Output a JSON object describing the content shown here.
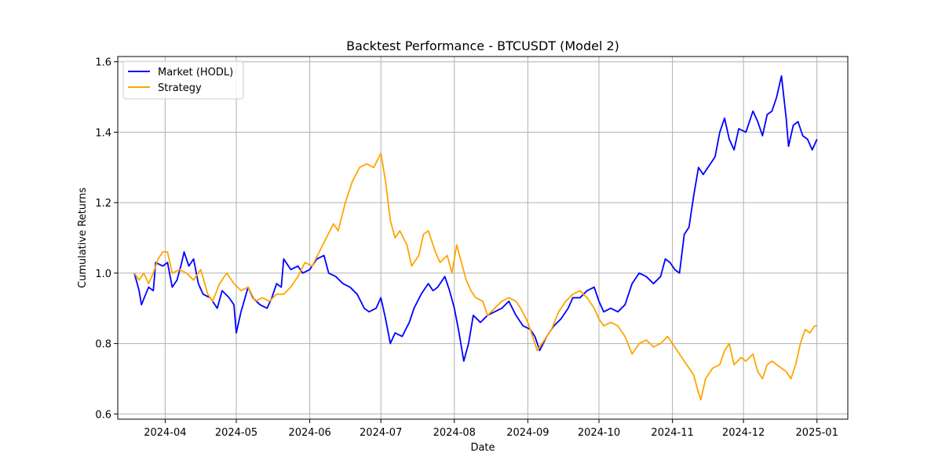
{
  "chart_data": {
    "type": "line",
    "title": "Backtest Performance - BTCUSDT (Model 2)",
    "xlabel": "Date",
    "ylabel": "Cumulative Returns",
    "xlim": [
      "2024-03-12",
      "2025-01-14"
    ],
    "ylim": [
      0.585,
      1.615
    ],
    "x_ticks": [
      "2024-04-01",
      "2024-05-01",
      "2024-06-01",
      "2024-07-01",
      "2024-08-01",
      "2024-09-01",
      "2024-10-01",
      "2024-11-01",
      "2024-12-01",
      "2025-01-01"
    ],
    "x_tick_labels": [
      "2024-04",
      "2024-05",
      "2024-06",
      "2024-07",
      "2024-08",
      "2024-09",
      "2024-10",
      "2024-11",
      "2024-12",
      "2025-01"
    ],
    "y_ticks": [
      0.6,
      0.8,
      1.0,
      1.2,
      1.4,
      1.6
    ],
    "y_tick_labels": [
      "0.6",
      "0.8",
      "1.0",
      "1.2",
      "1.4",
      "1.6"
    ],
    "grid": true,
    "legend_position": "top-left",
    "series": [
      {
        "name": "Market (HODL)",
        "color": "#0000ff",
        "points": [
          [
            "2024-03-19",
            1.0
          ],
          [
            "2024-03-21",
            0.95
          ],
          [
            "2024-03-22",
            0.91
          ],
          [
            "2024-03-25",
            0.96
          ],
          [
            "2024-03-27",
            0.95
          ],
          [
            "2024-03-28",
            1.03
          ],
          [
            "2024-03-31",
            1.02
          ],
          [
            "2024-04-02",
            1.03
          ],
          [
            "2024-04-04",
            0.96
          ],
          [
            "2024-04-06",
            0.98
          ],
          [
            "2024-04-08",
            1.03
          ],
          [
            "2024-04-09",
            1.06
          ],
          [
            "2024-04-11",
            1.02
          ],
          [
            "2024-04-13",
            1.04
          ],
          [
            "2024-04-15",
            0.97
          ],
          [
            "2024-04-17",
            0.94
          ],
          [
            "2024-04-20",
            0.93
          ],
          [
            "2024-04-23",
            0.9
          ],
          [
            "2024-04-25",
            0.95
          ],
          [
            "2024-04-28",
            0.93
          ],
          [
            "2024-04-30",
            0.91
          ],
          [
            "2024-05-01",
            0.83
          ],
          [
            "2024-05-03",
            0.89
          ],
          [
            "2024-05-06",
            0.96
          ],
          [
            "2024-05-08",
            0.93
          ],
          [
            "2024-05-11",
            0.91
          ],
          [
            "2024-05-14",
            0.9
          ],
          [
            "2024-05-16",
            0.93
          ],
          [
            "2024-05-18",
            0.97
          ],
          [
            "2024-05-20",
            0.96
          ],
          [
            "2024-05-21",
            1.04
          ],
          [
            "2024-05-24",
            1.01
          ],
          [
            "2024-05-27",
            1.02
          ],
          [
            "2024-05-29",
            1.0
          ],
          [
            "2024-06-01",
            1.01
          ],
          [
            "2024-06-04",
            1.04
          ],
          [
            "2024-06-07",
            1.05
          ],
          [
            "2024-06-09",
            1.0
          ],
          [
            "2024-06-12",
            0.99
          ],
          [
            "2024-06-15",
            0.97
          ],
          [
            "2024-06-18",
            0.96
          ],
          [
            "2024-06-21",
            0.94
          ],
          [
            "2024-06-24",
            0.9
          ],
          [
            "2024-06-26",
            0.89
          ],
          [
            "2024-06-29",
            0.9
          ],
          [
            "2024-07-01",
            0.93
          ],
          [
            "2024-07-03",
            0.87
          ],
          [
            "2024-07-05",
            0.8
          ],
          [
            "2024-07-07",
            0.83
          ],
          [
            "2024-07-10",
            0.82
          ],
          [
            "2024-07-13",
            0.86
          ],
          [
            "2024-07-15",
            0.9
          ],
          [
            "2024-07-18",
            0.94
          ],
          [
            "2024-07-21",
            0.97
          ],
          [
            "2024-07-23",
            0.95
          ],
          [
            "2024-07-25",
            0.96
          ],
          [
            "2024-07-28",
            0.99
          ],
          [
            "2024-07-30",
            0.95
          ],
          [
            "2024-08-01",
            0.9
          ],
          [
            "2024-08-03",
            0.83
          ],
          [
            "2024-08-05",
            0.75
          ],
          [
            "2024-08-07",
            0.8
          ],
          [
            "2024-08-09",
            0.88
          ],
          [
            "2024-08-12",
            0.86
          ],
          [
            "2024-08-15",
            0.88
          ],
          [
            "2024-08-18",
            0.89
          ],
          [
            "2024-08-21",
            0.9
          ],
          [
            "2024-08-24",
            0.92
          ],
          [
            "2024-08-27",
            0.88
          ],
          [
            "2024-08-30",
            0.85
          ],
          [
            "2024-09-02",
            0.84
          ],
          [
            "2024-09-04",
            0.82
          ],
          [
            "2024-09-06",
            0.78
          ],
          [
            "2024-09-09",
            0.82
          ],
          [
            "2024-09-12",
            0.85
          ],
          [
            "2024-09-15",
            0.87
          ],
          [
            "2024-09-18",
            0.9
          ],
          [
            "2024-09-20",
            0.93
          ],
          [
            "2024-09-23",
            0.93
          ],
          [
            "2024-09-26",
            0.95
          ],
          [
            "2024-09-29",
            0.96
          ],
          [
            "2024-10-01",
            0.92
          ],
          [
            "2024-10-03",
            0.89
          ],
          [
            "2024-10-06",
            0.9
          ],
          [
            "2024-10-09",
            0.89
          ],
          [
            "2024-10-12",
            0.91
          ],
          [
            "2024-10-15",
            0.97
          ],
          [
            "2024-10-18",
            1.0
          ],
          [
            "2024-10-21",
            0.99
          ],
          [
            "2024-10-24",
            0.97
          ],
          [
            "2024-10-27",
            0.99
          ],
          [
            "2024-10-29",
            1.04
          ],
          [
            "2024-10-31",
            1.03
          ],
          [
            "2024-11-02",
            1.01
          ],
          [
            "2024-11-04",
            1.0
          ],
          [
            "2024-11-06",
            1.11
          ],
          [
            "2024-11-08",
            1.13
          ],
          [
            "2024-11-10",
            1.22
          ],
          [
            "2024-11-12",
            1.3
          ],
          [
            "2024-11-14",
            1.28
          ],
          [
            "2024-11-16",
            1.3
          ],
          [
            "2024-11-19",
            1.33
          ],
          [
            "2024-11-21",
            1.4
          ],
          [
            "2024-11-23",
            1.44
          ],
          [
            "2024-11-25",
            1.38
          ],
          [
            "2024-11-27",
            1.35
          ],
          [
            "2024-11-29",
            1.41
          ],
          [
            "2024-12-02",
            1.4
          ],
          [
            "2024-12-05",
            1.46
          ],
          [
            "2024-12-07",
            1.43
          ],
          [
            "2024-12-09",
            1.39
          ],
          [
            "2024-12-11",
            1.45
          ],
          [
            "2024-12-13",
            1.46
          ],
          [
            "2024-12-15",
            1.5
          ],
          [
            "2024-12-17",
            1.56
          ],
          [
            "2024-12-19",
            1.44
          ],
          [
            "2024-12-20",
            1.36
          ],
          [
            "2024-12-22",
            1.42
          ],
          [
            "2024-12-24",
            1.43
          ],
          [
            "2024-12-26",
            1.39
          ],
          [
            "2024-12-28",
            1.38
          ],
          [
            "2024-12-30",
            1.35
          ],
          [
            "2025-01-01",
            1.38
          ]
        ]
      },
      {
        "name": "Strategy",
        "color": "#ffa500",
        "points": [
          [
            "2024-03-19",
            1.0
          ],
          [
            "2024-03-21",
            0.98
          ],
          [
            "2024-03-23",
            1.0
          ],
          [
            "2024-03-25",
            0.97
          ],
          [
            "2024-03-27",
            1.0
          ],
          [
            "2024-03-29",
            1.04
          ],
          [
            "2024-03-31",
            1.06
          ],
          [
            "2024-04-02",
            1.06
          ],
          [
            "2024-04-04",
            1.0
          ],
          [
            "2024-04-07",
            1.01
          ],
          [
            "2024-04-10",
            1.0
          ],
          [
            "2024-04-13",
            0.98
          ],
          [
            "2024-04-16",
            1.01
          ],
          [
            "2024-04-19",
            0.94
          ],
          [
            "2024-04-21",
            0.92
          ],
          [
            "2024-04-24",
            0.97
          ],
          [
            "2024-04-27",
            1.0
          ],
          [
            "2024-04-30",
            0.97
          ],
          [
            "2024-05-03",
            0.95
          ],
          [
            "2024-05-06",
            0.96
          ],
          [
            "2024-05-09",
            0.92
          ],
          [
            "2024-05-12",
            0.93
          ],
          [
            "2024-05-15",
            0.92
          ],
          [
            "2024-05-18",
            0.94
          ],
          [
            "2024-05-21",
            0.94
          ],
          [
            "2024-05-24",
            0.96
          ],
          [
            "2024-05-27",
            0.99
          ],
          [
            "2024-05-30",
            1.03
          ],
          [
            "2024-06-02",
            1.02
          ],
          [
            "2024-06-05",
            1.06
          ],
          [
            "2024-06-08",
            1.1
          ],
          [
            "2024-06-11",
            1.14
          ],
          [
            "2024-06-13",
            1.12
          ],
          [
            "2024-06-16",
            1.2
          ],
          [
            "2024-06-19",
            1.26
          ],
          [
            "2024-06-22",
            1.3
          ],
          [
            "2024-06-25",
            1.31
          ],
          [
            "2024-06-28",
            1.3
          ],
          [
            "2024-07-01",
            1.34
          ],
          [
            "2024-07-03",
            1.26
          ],
          [
            "2024-07-05",
            1.15
          ],
          [
            "2024-07-07",
            1.1
          ],
          [
            "2024-07-09",
            1.12
          ],
          [
            "2024-07-12",
            1.08
          ],
          [
            "2024-07-14",
            1.02
          ],
          [
            "2024-07-17",
            1.05
          ],
          [
            "2024-07-19",
            1.11
          ],
          [
            "2024-07-21",
            1.12
          ],
          [
            "2024-07-24",
            1.06
          ],
          [
            "2024-07-26",
            1.03
          ],
          [
            "2024-07-29",
            1.05
          ],
          [
            "2024-07-31",
            1.0
          ],
          [
            "2024-08-02",
            1.08
          ],
          [
            "2024-08-04",
            1.03
          ],
          [
            "2024-08-06",
            0.98
          ],
          [
            "2024-08-08",
            0.95
          ],
          [
            "2024-08-10",
            0.93
          ],
          [
            "2024-08-13",
            0.92
          ],
          [
            "2024-08-15",
            0.88
          ],
          [
            "2024-08-18",
            0.9
          ],
          [
            "2024-08-21",
            0.92
          ],
          [
            "2024-08-24",
            0.93
          ],
          [
            "2024-08-27",
            0.92
          ],
          [
            "2024-08-29",
            0.9
          ],
          [
            "2024-09-01",
            0.86
          ],
          [
            "2024-09-03",
            0.82
          ],
          [
            "2024-09-05",
            0.78
          ],
          [
            "2024-09-08",
            0.81
          ],
          [
            "2024-09-11",
            0.84
          ],
          [
            "2024-09-14",
            0.89
          ],
          [
            "2024-09-17",
            0.92
          ],
          [
            "2024-09-20",
            0.94
          ],
          [
            "2024-09-23",
            0.95
          ],
          [
            "2024-09-26",
            0.93
          ],
          [
            "2024-09-29",
            0.9
          ],
          [
            "2024-10-01",
            0.87
          ],
          [
            "2024-10-03",
            0.85
          ],
          [
            "2024-10-06",
            0.86
          ],
          [
            "2024-10-09",
            0.85
          ],
          [
            "2024-10-12",
            0.82
          ],
          [
            "2024-10-15",
            0.77
          ],
          [
            "2024-10-18",
            0.8
          ],
          [
            "2024-10-21",
            0.81
          ],
          [
            "2024-10-24",
            0.79
          ],
          [
            "2024-10-27",
            0.8
          ],
          [
            "2024-10-30",
            0.82
          ],
          [
            "2024-11-02",
            0.79
          ],
          [
            "2024-11-05",
            0.76
          ],
          [
            "2024-11-07",
            0.74
          ],
          [
            "2024-11-10",
            0.71
          ],
          [
            "2024-11-12",
            0.66
          ],
          [
            "2024-11-13",
            0.64
          ],
          [
            "2024-11-15",
            0.7
          ],
          [
            "2024-11-18",
            0.73
          ],
          [
            "2024-11-21",
            0.74
          ],
          [
            "2024-11-23",
            0.78
          ],
          [
            "2024-11-25",
            0.8
          ],
          [
            "2024-11-27",
            0.74
          ],
          [
            "2024-11-30",
            0.76
          ],
          [
            "2024-12-02",
            0.75
          ],
          [
            "2024-12-05",
            0.77
          ],
          [
            "2024-12-07",
            0.72
          ],
          [
            "2024-12-09",
            0.7
          ],
          [
            "2024-12-11",
            0.74
          ],
          [
            "2024-12-13",
            0.75
          ],
          [
            "2024-12-15",
            0.74
          ],
          [
            "2024-12-17",
            0.73
          ],
          [
            "2024-12-19",
            0.72
          ],
          [
            "2024-12-21",
            0.7
          ],
          [
            "2024-12-23",
            0.74
          ],
          [
            "2024-12-25",
            0.8
          ],
          [
            "2024-12-27",
            0.84
          ],
          [
            "2024-12-29",
            0.83
          ],
          [
            "2024-12-31",
            0.85
          ],
          [
            "2025-01-01",
            0.85
          ]
        ]
      }
    ]
  }
}
